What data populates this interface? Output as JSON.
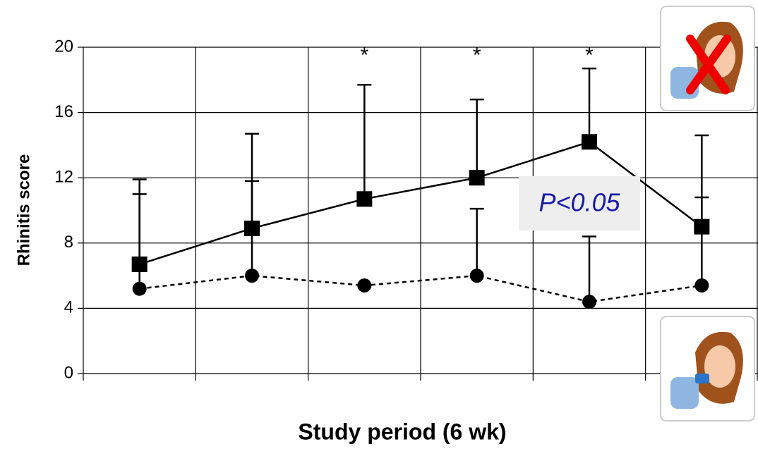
{
  "chart_data": {
    "type": "line",
    "ylabel": "Rhinitis score",
    "xlabel": "Study period (6 wk)",
    "categories": [
      null,
      null,
      null,
      null,
      null,
      null
    ],
    "series": [
      {
        "marker": "square",
        "linestyle": "solid",
        "color": "#000000",
        "values": [
          6.7,
          8.9,
          10.7,
          12.0,
          14.2,
          9.0
        ],
        "errors": [
          5.2,
          5.8,
          7.0,
          4.8,
          4.5,
          5.6
        ]
      },
      {
        "marker": "circle",
        "linestyle": "dotted",
        "color": "#000000",
        "values": [
          5.2,
          6.0,
          5.4,
          6.0,
          4.4,
          5.4
        ],
        "errors": [
          5.8,
          5.8,
          null,
          4.1,
          4.0,
          5.4
        ]
      }
    ],
    "significance": [
      null,
      null,
      "*",
      "*",
      "*",
      null
    ],
    "note": "P<0.05",
    "ylim": [
      0,
      20
    ],
    "yticks": [
      0,
      4,
      8,
      12,
      16,
      20
    ],
    "grid": true
  }
}
